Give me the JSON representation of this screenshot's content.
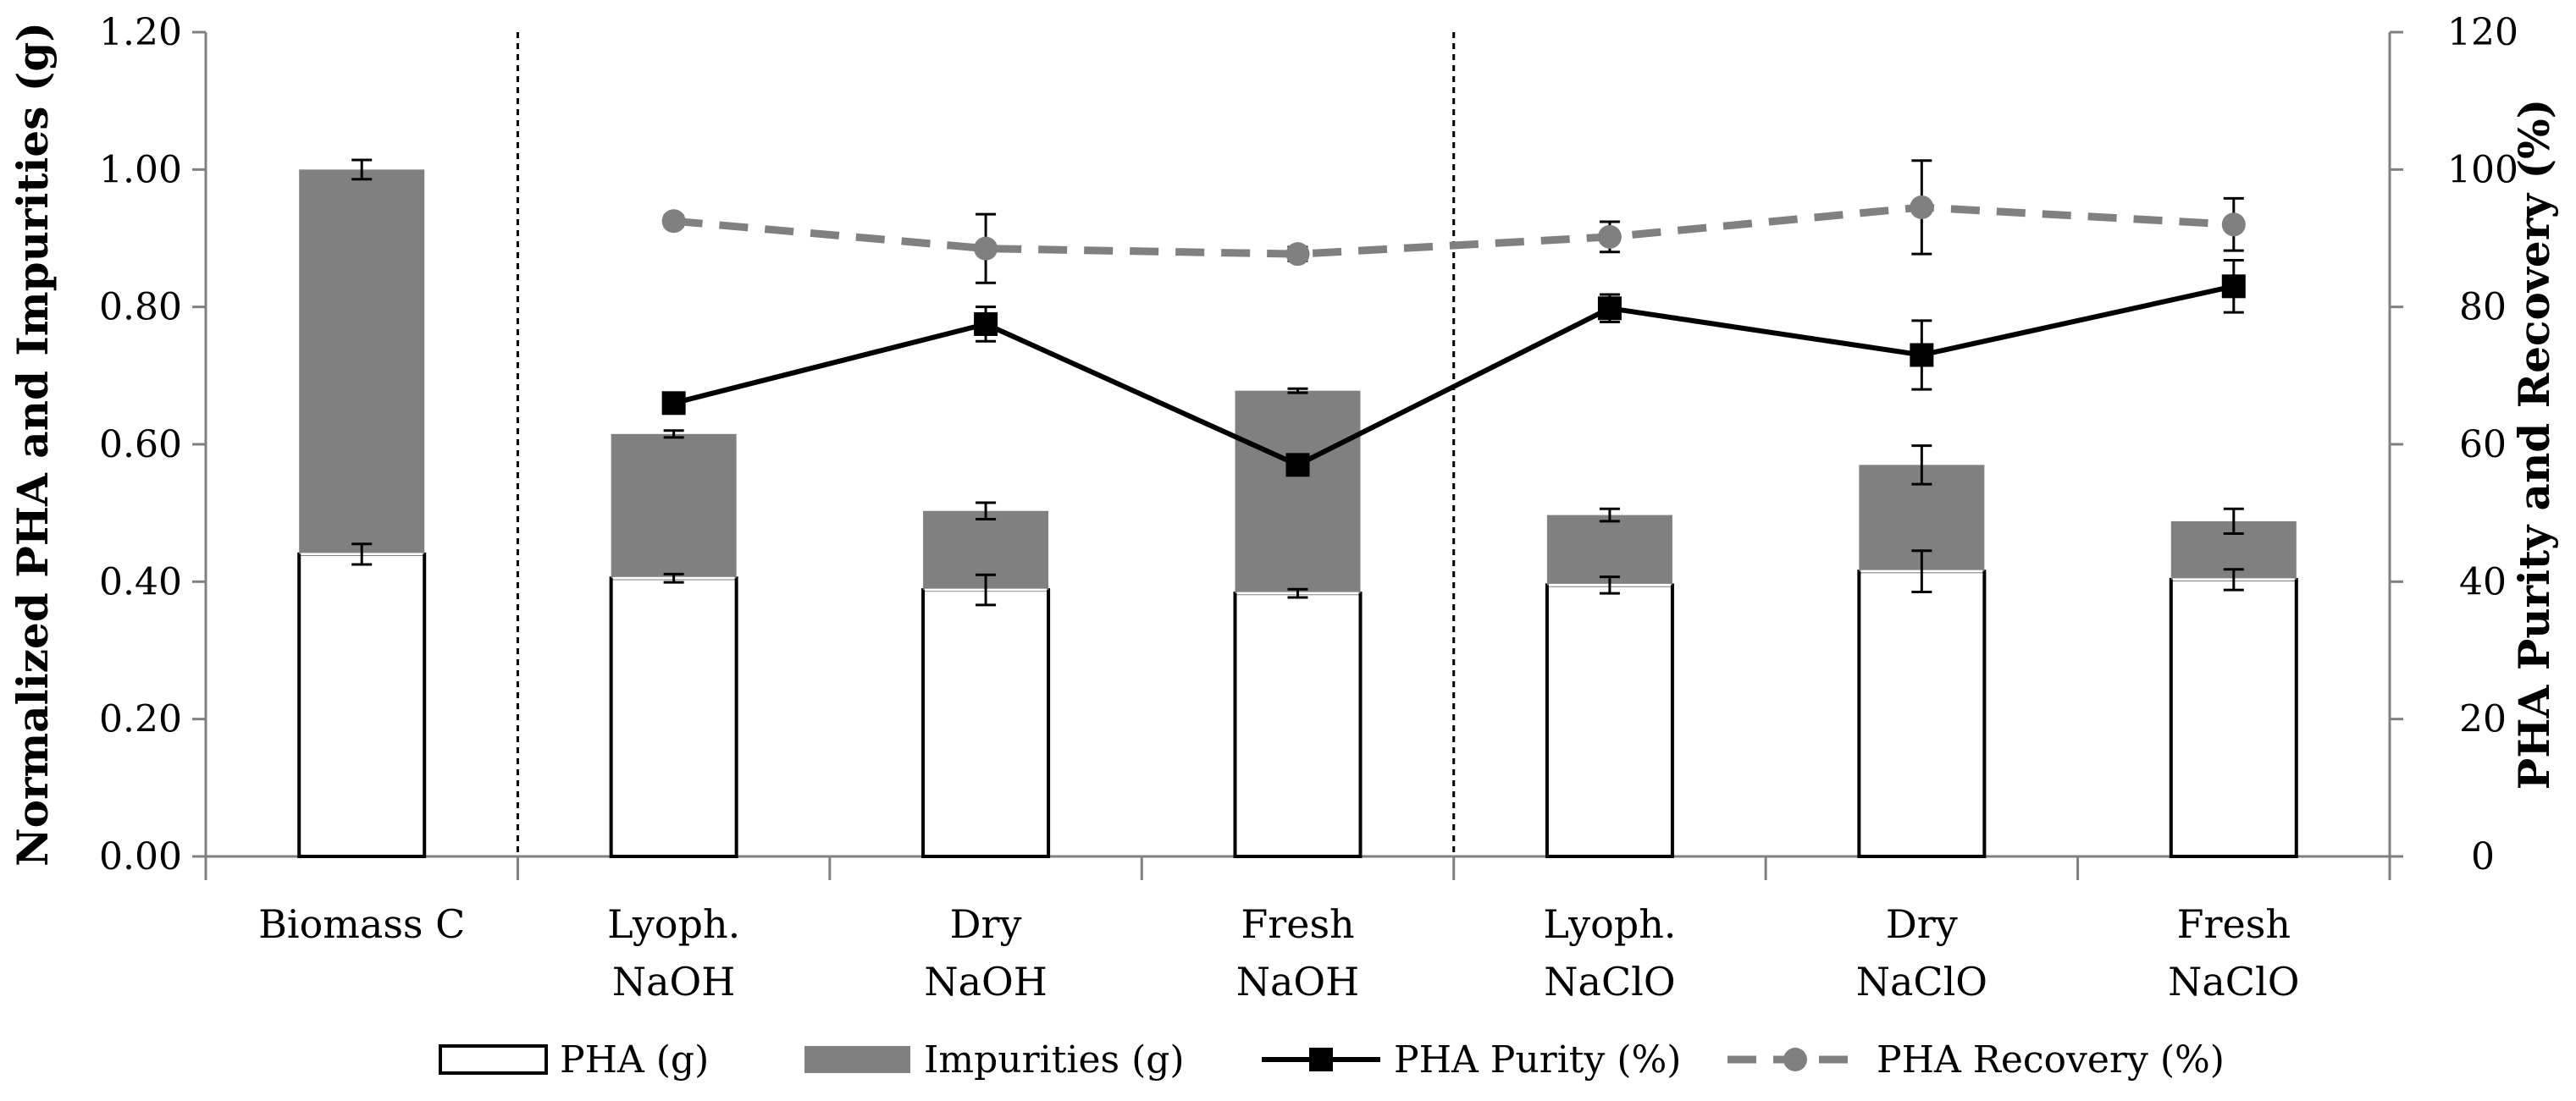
{
  "chart_data": {
    "type": "bar",
    "stacked": true,
    "categories": [
      [
        "Biomass C"
      ],
      [
        "Lyoph.",
        "NaOH"
      ],
      [
        "Dry",
        "NaOH"
      ],
      [
        "Fresh",
        "NaOH"
      ],
      [
        "Lyoph.",
        "NaClO"
      ],
      [
        "Dry",
        "NaClO"
      ],
      [
        "Fresh",
        "NaClO"
      ]
    ],
    "series": [
      {
        "name": "PHA (g)",
        "kind": "bar",
        "axis": "left",
        "color": "#ffffff",
        "values": [
          0.44,
          0.405,
          0.388,
          0.383,
          0.395,
          0.415,
          0.403
        ],
        "errors": [
          0.015,
          0.006,
          0.022,
          0.006,
          0.012,
          0.03,
          0.015
        ]
      },
      {
        "name": "Impurities (g)",
        "kind": "bar",
        "axis": "left",
        "color": "#808080",
        "values": [
          0.56,
          0.21,
          0.115,
          0.295,
          0.102,
          0.155,
          0.085
        ],
        "errors": [
          0.014,
          0.005,
          0.012,
          0.003,
          0.009,
          0.028,
          0.018
        ]
      },
      {
        "name": "PHA Purity (%)",
        "kind": "line",
        "axis": "right",
        "color": "#000000",
        "values": [
          null,
          66,
          77.5,
          57,
          79.8,
          73,
          83
        ],
        "errors": [
          null,
          0,
          2.5,
          0,
          2,
          5,
          3.8
        ]
      },
      {
        "name": "PHA Recovery (%)",
        "kind": "line",
        "axis": "right",
        "color": "#808080",
        "dashed": true,
        "values": [
          null,
          92.5,
          88.5,
          87.7,
          90.2,
          94.5,
          92
        ],
        "errors": [
          null,
          0.8,
          5,
          1,
          2.2,
          6.8,
          3.8
        ]
      }
    ],
    "ylabel": "Normalized PHA and Impurities (g)",
    "y2label": "PHA  Purity and Recovery (%)",
    "ylim": [
      0,
      1.2
    ],
    "y2lim": [
      0,
      120
    ],
    "yticks": [
      "0.00",
      "0.20",
      "0.40",
      "0.60",
      "0.80",
      "1.00",
      "1.20"
    ],
    "y2ticks": [
      "0",
      "20",
      "40",
      "60",
      "80",
      "100",
      "120"
    ],
    "separators_after_category": [
      0,
      3
    ],
    "legend_position": "bottom",
    "grid": false
  }
}
